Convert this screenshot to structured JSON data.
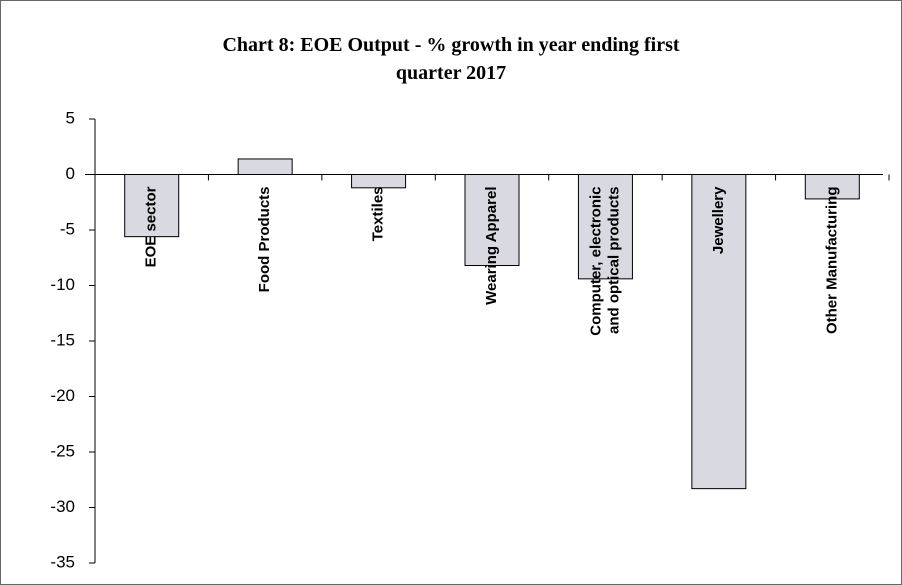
{
  "chart_data": {
    "type": "bar",
    "title": "Chart 8: EOE Output - % growth in year ending first quarter 2017",
    "categories": [
      "EOE sector",
      "Food Products",
      "Textiles",
      "Wearing Apparel",
      "Computer, electronic and optical products",
      "Jewellery",
      "Other Manufacturing"
    ],
    "values": [
      -5.6,
      1.4,
      -1.2,
      -8.2,
      -9.4,
      -28.3,
      -2.2
    ],
    "color": "#d9d9e1",
    "ylim": [
      -35,
      5
    ],
    "yticks": [
      -35,
      -30,
      -25,
      -20,
      -15,
      -10,
      -5,
      0,
      5
    ],
    "grid": false
  }
}
